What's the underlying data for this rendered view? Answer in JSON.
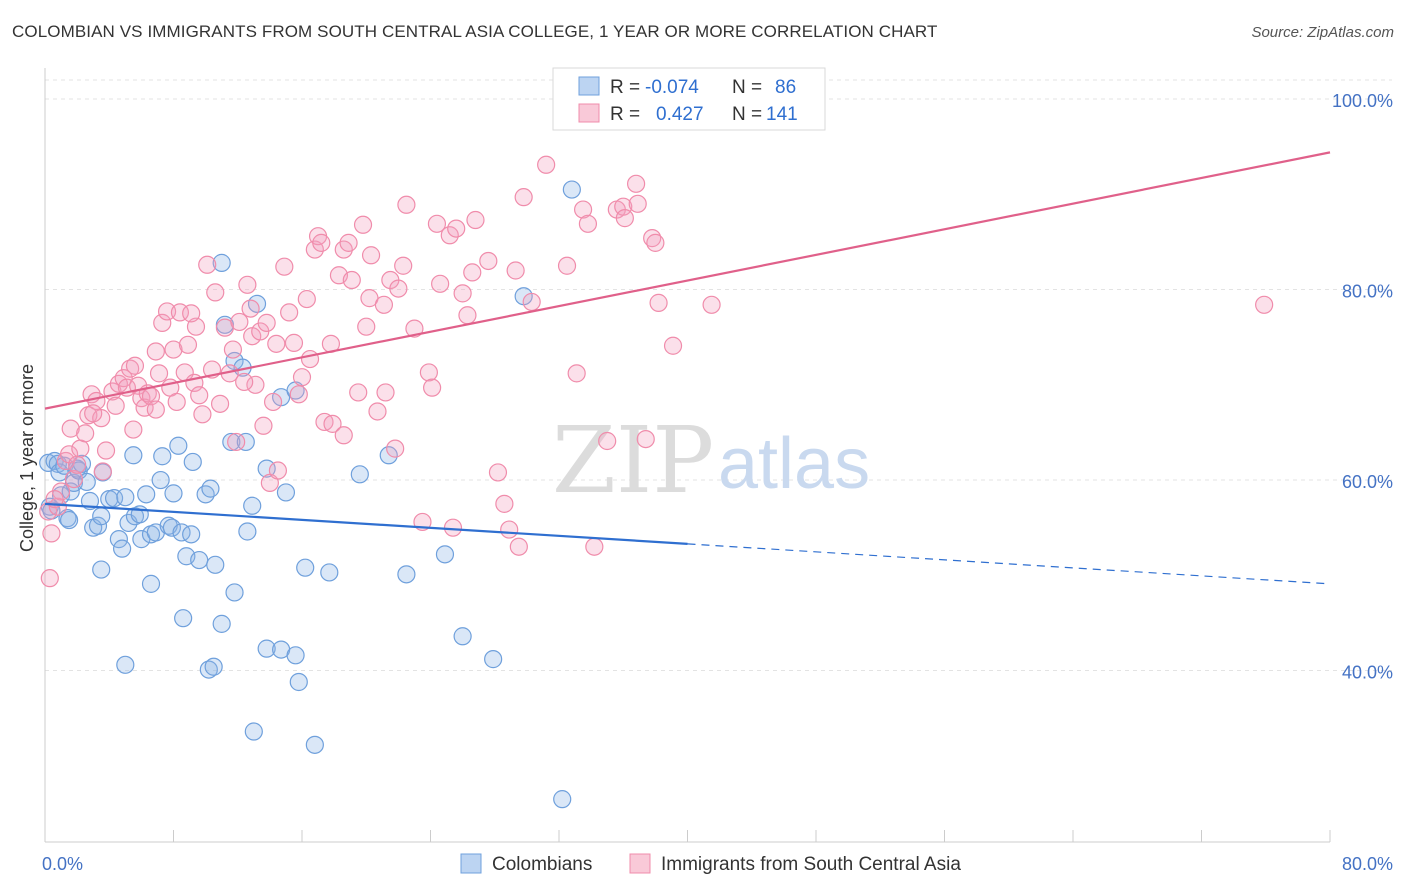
{
  "title": "COLOMBIAN VS IMMIGRANTS FROM SOUTH CENTRAL ASIA COLLEGE, 1 YEAR OR MORE CORRELATION CHART",
  "source": "Source: ZipAtlas.com",
  "watermark": {
    "zip": "ZIP",
    "atlas": "atlas"
  },
  "colors": {
    "blue": "#6fa0dc",
    "blue_line": "#2f6fd0",
    "pink": "#f08cab",
    "pink_line": "#e0608a"
  },
  "legend": {
    "r_label": "R =",
    "n_label": "N =",
    "series": [
      {
        "r": "-0.074",
        "n": "86"
      },
      {
        "r": "0.427",
        "n": "141"
      }
    ]
  },
  "bottom_legend": [
    "Colombians",
    "Immigrants from South Central Asia"
  ],
  "chart_data": {
    "type": "scatter",
    "ylabel": "College, 1 year or more",
    "x_tick_labels": [
      "0.0%",
      "80.0%"
    ],
    "y_tick_labels": [
      "100.0%",
      "80.0%",
      "60.0%",
      "40.0%"
    ],
    "y_ticks": [
      100,
      80,
      60,
      40
    ],
    "xlim": [
      0,
      80
    ],
    "ylim": [
      22,
      102
    ],
    "grid": true,
    "series": [
      {
        "name": "Colombians",
        "color": "#6fa0dc",
        "trend": {
          "x0": 0,
          "y0": 57.5,
          "x1": 40,
          "y1": 53.3,
          "x_dash_end": 80,
          "y_dash_end": 49.1
        },
        "points": [
          [
            0.2,
            61.8
          ],
          [
            0.3,
            57.2
          ],
          [
            0.4,
            56.8
          ],
          [
            0.6,
            62.0
          ],
          [
            0.8,
            61.7
          ],
          [
            0.9,
            60.8
          ],
          [
            1.0,
            58.4
          ],
          [
            1.2,
            61.5
          ],
          [
            1.4,
            56.0
          ],
          [
            1.5,
            55.8
          ],
          [
            1.6,
            58.8
          ],
          [
            1.8,
            59.7
          ],
          [
            2.0,
            61.2
          ],
          [
            2.1,
            61.0
          ],
          [
            2.3,
            61.7
          ],
          [
            2.6,
            59.8
          ],
          [
            2.8,
            57.8
          ],
          [
            3.0,
            55.0
          ],
          [
            3.3,
            55.2
          ],
          [
            3.5,
            56.2
          ],
          [
            3.6,
            60.8
          ],
          [
            4.0,
            58.0
          ],
          [
            4.3,
            58.1
          ],
          [
            4.6,
            53.8
          ],
          [
            4.8,
            52.8
          ],
          [
            5.0,
            58.2
          ],
          [
            5.2,
            55.5
          ],
          [
            5.5,
            62.6
          ],
          [
            5.6,
            56.2
          ],
          [
            5.9,
            56.4
          ],
          [
            6.0,
            53.8
          ],
          [
            6.3,
            58.5
          ],
          [
            6.6,
            54.3
          ],
          [
            6.9,
            54.5
          ],
          [
            7.2,
            60.0
          ],
          [
            7.3,
            62.5
          ],
          [
            7.7,
            55.2
          ],
          [
            7.9,
            55.0
          ],
          [
            8.0,
            58.6
          ],
          [
            8.3,
            63.6
          ],
          [
            8.5,
            54.5
          ],
          [
            8.8,
            52.0
          ],
          [
            9.1,
            54.3
          ],
          [
            9.2,
            61.9
          ],
          [
            9.6,
            51.6
          ],
          [
            10.0,
            58.5
          ],
          [
            10.3,
            59.1
          ],
          [
            10.6,
            51.1
          ],
          [
            11.0,
            82.8
          ],
          [
            11.2,
            76.3
          ],
          [
            11.6,
            64.0
          ],
          [
            11.8,
            72.5
          ],
          [
            12.3,
            71.8
          ],
          [
            12.5,
            64.0
          ],
          [
            12.6,
            54.6
          ],
          [
            12.9,
            57.3
          ],
          [
            13.2,
            78.5
          ],
          [
            13.8,
            61.2
          ],
          [
            14.7,
            68.7
          ],
          [
            15.0,
            58.7
          ],
          [
            15.6,
            69.4
          ],
          [
            16.2,
            50.8
          ],
          [
            17.7,
            50.3
          ],
          [
            19.6,
            60.6
          ],
          [
            21.4,
            62.6
          ],
          [
            22.5,
            50.1
          ],
          [
            24.9,
            52.2
          ],
          [
            26.0,
            43.6
          ],
          [
            27.9,
            41.2
          ],
          [
            29.8,
            79.3
          ],
          [
            32.2,
            26.5
          ],
          [
            32.8,
            90.5
          ],
          [
            3.5,
            50.6
          ],
          [
            5.0,
            40.6
          ],
          [
            6.6,
            49.1
          ],
          [
            8.6,
            45.5
          ],
          [
            10.2,
            40.1
          ],
          [
            10.5,
            40.4
          ],
          [
            11.0,
            44.9
          ],
          [
            11.8,
            48.2
          ],
          [
            13.0,
            33.6
          ],
          [
            13.8,
            42.3
          ],
          [
            14.7,
            42.2
          ],
          [
            15.6,
            41.6
          ],
          [
            15.8,
            38.8
          ],
          [
            16.8,
            32.2
          ]
        ]
      },
      {
        "name": "Immigrants from South Central Asia",
        "color": "#f08cab",
        "trend": {
          "x0": 0,
          "y0": 67.5,
          "x1": 80,
          "y1": 94.4
        },
        "points": [
          [
            0.2,
            56.7
          ],
          [
            0.3,
            49.7
          ],
          [
            0.4,
            54.4
          ],
          [
            0.8,
            57.2
          ],
          [
            1.0,
            58.8
          ],
          [
            1.3,
            62.0
          ],
          [
            1.5,
            62.7
          ],
          [
            1.6,
            65.4
          ],
          [
            1.8,
            60.1
          ],
          [
            2.2,
            63.3
          ],
          [
            2.5,
            64.9
          ],
          [
            2.7,
            66.8
          ],
          [
            2.9,
            69.0
          ],
          [
            3.2,
            68.3
          ],
          [
            3.5,
            66.5
          ],
          [
            3.6,
            60.9
          ],
          [
            3.8,
            63.1
          ],
          [
            4.2,
            69.3
          ],
          [
            4.4,
            67.8
          ],
          [
            4.6,
            70.1
          ],
          [
            4.9,
            70.7
          ],
          [
            5.1,
            69.7
          ],
          [
            5.3,
            71.7
          ],
          [
            5.6,
            72.0
          ],
          [
            5.8,
            69.9
          ],
          [
            6.0,
            68.6
          ],
          [
            6.2,
            67.6
          ],
          [
            6.4,
            69.1
          ],
          [
            6.6,
            68.8
          ],
          [
            6.9,
            73.5
          ],
          [
            7.1,
            71.2
          ],
          [
            7.3,
            76.5
          ],
          [
            7.6,
            77.7
          ],
          [
            7.8,
            69.7
          ],
          [
            8.0,
            73.7
          ],
          [
            8.2,
            68.2
          ],
          [
            8.4,
            77.6
          ],
          [
            8.7,
            71.3
          ],
          [
            8.9,
            74.2
          ],
          [
            9.3,
            70.2
          ],
          [
            9.4,
            76.1
          ],
          [
            9.6,
            68.9
          ],
          [
            9.8,
            66.9
          ],
          [
            10.1,
            82.6
          ],
          [
            10.4,
            71.6
          ],
          [
            10.6,
            79.7
          ],
          [
            10.9,
            68.0
          ],
          [
            11.2,
            76.0
          ],
          [
            11.5,
            71.2
          ],
          [
            11.7,
            73.7
          ],
          [
            11.9,
            64.0
          ],
          [
            12.1,
            76.6
          ],
          [
            12.6,
            80.5
          ],
          [
            12.8,
            78.0
          ],
          [
            12.9,
            75.1
          ],
          [
            13.1,
            70.0
          ],
          [
            13.4,
            75.6
          ],
          [
            13.6,
            65.7
          ],
          [
            13.8,
            76.5
          ],
          [
            14.0,
            59.7
          ],
          [
            14.4,
            74.3
          ],
          [
            14.5,
            61.0
          ],
          [
            14.9,
            82.4
          ],
          [
            15.2,
            77.6
          ],
          [
            15.5,
            74.4
          ],
          [
            15.8,
            69.0
          ],
          [
            16.3,
            79.0
          ],
          [
            16.5,
            72.7
          ],
          [
            16.8,
            84.2
          ],
          [
            17.0,
            85.6
          ],
          [
            17.2,
            84.9
          ],
          [
            17.4,
            66.1
          ],
          [
            17.8,
            74.3
          ],
          [
            17.9,
            65.9
          ],
          [
            18.3,
            81.5
          ],
          [
            18.6,
            84.2
          ],
          [
            18.9,
            84.9
          ],
          [
            19.1,
            81.0
          ],
          [
            19.5,
            69.2
          ],
          [
            19.8,
            86.8
          ],
          [
            20.0,
            76.1
          ],
          [
            20.2,
            79.1
          ],
          [
            20.3,
            83.6
          ],
          [
            20.7,
            67.2
          ],
          [
            21.1,
            78.4
          ],
          [
            21.2,
            69.2
          ],
          [
            21.5,
            81.0
          ],
          [
            21.8,
            63.3
          ],
          [
            22.0,
            80.1
          ],
          [
            22.3,
            82.5
          ],
          [
            22.5,
            88.9
          ],
          [
            23.0,
            75.9
          ],
          [
            23.5,
            55.6
          ],
          [
            23.9,
            71.3
          ],
          [
            24.1,
            69.7
          ],
          [
            24.4,
            86.9
          ],
          [
            24.6,
            80.6
          ],
          [
            25.2,
            85.7
          ],
          [
            25.4,
            55.0
          ],
          [
            25.6,
            86.4
          ],
          [
            26.0,
            79.6
          ],
          [
            26.3,
            77.3
          ],
          [
            26.6,
            81.8
          ],
          [
            26.8,
            87.3
          ],
          [
            27.6,
            83.0
          ],
          [
            28.2,
            60.8
          ],
          [
            28.6,
            57.5
          ],
          [
            28.9,
            54.8
          ],
          [
            29.3,
            82.0
          ],
          [
            29.5,
            53.0
          ],
          [
            29.8,
            89.7
          ],
          [
            30.3,
            78.7
          ],
          [
            31.2,
            93.1
          ],
          [
            32.5,
            82.5
          ],
          [
            33.1,
            71.2
          ],
          [
            33.5,
            88.4
          ],
          [
            33.8,
            86.9
          ],
          [
            34.2,
            53.0
          ],
          [
            35.0,
            64.1
          ],
          [
            35.6,
            88.4
          ],
          [
            36.0,
            88.7
          ],
          [
            36.1,
            87.5
          ],
          [
            36.8,
            91.1
          ],
          [
            36.9,
            89.0
          ],
          [
            37.4,
            64.3
          ],
          [
            37.8,
            85.4
          ],
          [
            38.0,
            84.9
          ],
          [
            38.2,
            78.6
          ],
          [
            39.1,
            74.1
          ],
          [
            41.5,
            78.4
          ],
          [
            75.9,
            78.4
          ],
          [
            0.6,
            58.0
          ],
          [
            2.0,
            61.6
          ],
          [
            3.0,
            67.0
          ],
          [
            5.5,
            65.3
          ],
          [
            6.9,
            67.4
          ],
          [
            9.1,
            77.5
          ],
          [
            12.4,
            70.3
          ],
          [
            14.2,
            68.2
          ],
          [
            16.0,
            70.8
          ],
          [
            18.6,
            64.7
          ]
        ]
      }
    ]
  }
}
